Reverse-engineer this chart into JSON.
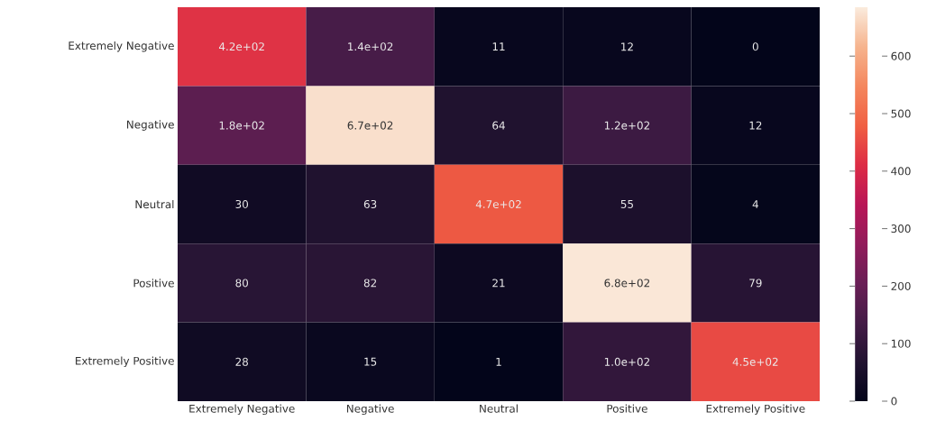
{
  "chart_data": {
    "type": "heatmap",
    "categories": [
      "Extremely Negative",
      "Negative",
      "Neutral",
      "Positive",
      "Extremely Positive"
    ],
    "y_categories": [
      "Extremely Negative",
      "Negative",
      "Neutral",
      "Positive",
      "Extremely Positive"
    ],
    "cells": [
      [
        420,
        140,
        11,
        12,
        0
      ],
      [
        180,
        670,
        64,
        120,
        12
      ],
      [
        30,
        63,
        470,
        55,
        4
      ],
      [
        80,
        82,
        21,
        680,
        79
      ],
      [
        28,
        15,
        1,
        100,
        450
      ]
    ],
    "cell_labels": [
      [
        "4.2e+02",
        "1.4e+02",
        "11",
        "12",
        "0"
      ],
      [
        "1.8e+02",
        "6.7e+02",
        "64",
        "1.2e+02",
        "12"
      ],
      [
        "30",
        "63",
        "4.7e+02",
        "55",
        "4"
      ],
      [
        "80",
        "82",
        "21",
        "6.8e+02",
        "79"
      ],
      [
        "28",
        "15",
        "1",
        "1.0e+02",
        "4.5e+02"
      ]
    ],
    "clim": [
      0,
      685
    ],
    "cticks": [
      0,
      100,
      200,
      300,
      400,
      500,
      600
    ]
  }
}
